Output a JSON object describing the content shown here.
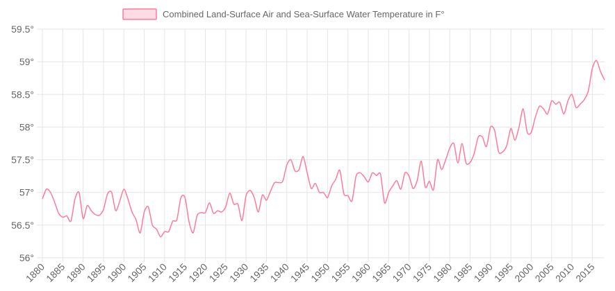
{
  "chart_data": {
    "type": "line",
    "title": "",
    "xlabel": "",
    "ylabel": "",
    "legend": {
      "position": "top",
      "entries": [
        "Combined Land-Surface Air and Sea-Surface Water Temperature in F°"
      ]
    },
    "grid": true,
    "xlim": [
      1880,
      2018
    ],
    "ylim": [
      56,
      59.5
    ],
    "x_ticks": [
      "1880",
      "1885",
      "1890",
      "1895",
      "1900",
      "1905",
      "1910",
      "1915",
      "1920",
      "1925",
      "1930",
      "1935",
      "1940",
      "1945",
      "1950",
      "1955",
      "1960",
      "1965",
      "1970",
      "1975",
      "1980",
      "1985",
      "1990",
      "1995",
      "2000",
      "2005",
      "2010",
      "2015"
    ],
    "y_ticks": [
      "56°",
      "56.5°",
      "57°",
      "57.5°",
      "58°",
      "58.5°",
      "59°",
      "59.5°"
    ],
    "colors": {
      "line": "#ff7a99",
      "legend_fill": "#ffdbe4",
      "legend_border": "#ff7a99",
      "grid": "#e5e5e5",
      "text": "#666666"
    },
    "series": [
      {
        "name": "Combined Land-Surface Air and Sea-Surface Water Temperature in F°",
        "x": [
          1880,
          1881,
          1882,
          1883,
          1884,
          1885,
          1886,
          1887,
          1888,
          1889,
          1890,
          1891,
          1892,
          1893,
          1894,
          1895,
          1896,
          1897,
          1898,
          1899,
          1900,
          1901,
          1902,
          1903,
          1904,
          1905,
          1906,
          1907,
          1908,
          1909,
          1910,
          1911,
          1912,
          1913,
          1914,
          1915,
          1916,
          1917,
          1918,
          1919,
          1920,
          1921,
          1922,
          1923,
          1924,
          1925,
          1926,
          1927,
          1928,
          1929,
          1930,
          1931,
          1932,
          1933,
          1934,
          1935,
          1936,
          1937,
          1938,
          1939,
          1940,
          1941,
          1942,
          1943,
          1944,
          1945,
          1946,
          1947,
          1948,
          1949,
          1950,
          1951,
          1952,
          1953,
          1954,
          1955,
          1956,
          1957,
          1958,
          1959,
          1960,
          1961,
          1962,
          1963,
          1964,
          1965,
          1966,
          1967,
          1968,
          1969,
          1970,
          1971,
          1972,
          1973,
          1974,
          1975,
          1976,
          1977,
          1978,
          1979,
          1980,
          1981,
          1982,
          1983,
          1984,
          1985,
          1986,
          1987,
          1988,
          1989,
          1990,
          1991,
          1992,
          1993,
          1994,
          1995,
          1996,
          1997,
          1998,
          1999,
          2000,
          2001,
          2002,
          2003,
          2004,
          2005,
          2006,
          2007,
          2008,
          2009,
          2010,
          2011,
          2012,
          2013,
          2014,
          2015,
          2016,
          2017,
          2018
        ],
        "values": [
          56.9,
          57.05,
          57.0,
          56.85,
          56.68,
          56.62,
          56.64,
          56.56,
          56.9,
          57.0,
          56.6,
          56.8,
          56.72,
          56.66,
          56.65,
          56.74,
          56.98,
          57.0,
          56.72,
          56.87,
          57.05,
          56.9,
          56.7,
          56.58,
          56.38,
          56.7,
          56.78,
          56.5,
          56.44,
          56.32,
          56.4,
          56.4,
          56.56,
          56.58,
          56.92,
          56.92,
          56.55,
          56.38,
          56.65,
          56.69,
          56.69,
          56.84,
          56.68,
          56.72,
          56.7,
          56.78,
          56.99,
          56.82,
          56.82,
          56.57,
          56.95,
          57.03,
          56.92,
          56.7,
          56.96,
          56.88,
          57.02,
          57.15,
          57.15,
          57.17,
          57.42,
          57.5,
          57.33,
          57.35,
          57.55,
          57.3,
          57.06,
          57.14,
          57.0,
          57.0,
          56.92,
          57.1,
          57.2,
          57.34,
          56.98,
          56.95,
          56.87,
          57.25,
          57.3,
          57.24,
          57.16,
          57.3,
          57.26,
          57.28,
          56.84,
          57.0,
          57.1,
          57.18,
          57.05,
          57.3,
          57.25,
          57.06,
          57.18,
          57.48,
          57.08,
          57.17,
          57.04,
          57.5,
          57.35,
          57.5,
          57.68,
          57.75,
          57.45,
          57.75,
          57.45,
          57.46,
          57.6,
          57.85,
          57.85,
          57.7,
          58.0,
          57.95,
          57.62,
          57.62,
          57.72,
          57.98,
          57.8,
          58.0,
          58.28,
          57.92,
          57.92,
          58.15,
          58.32,
          58.28,
          58.2,
          58.4,
          58.35,
          58.38,
          58.2,
          58.4,
          58.5,
          58.3,
          58.35,
          58.42,
          58.55,
          58.9,
          59.02,
          58.85,
          58.72
        ]
      }
    ]
  }
}
